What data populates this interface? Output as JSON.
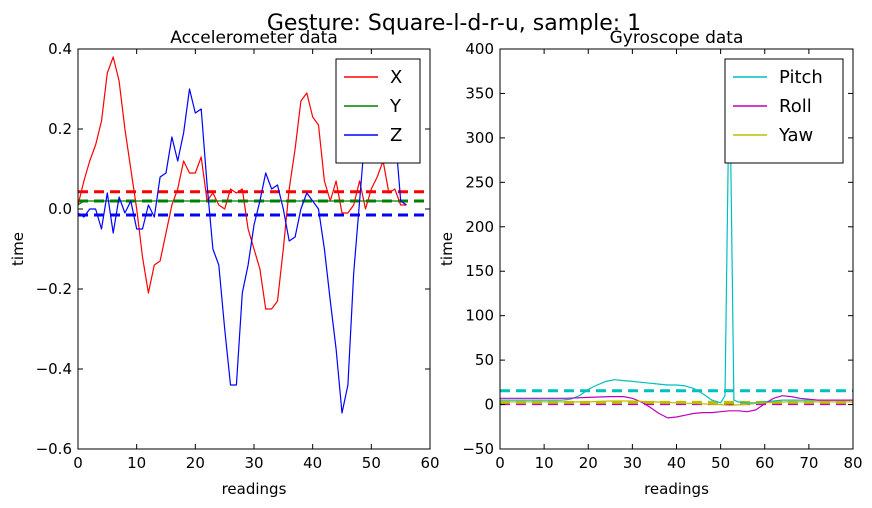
{
  "figure": {
    "title": "Gesture: Square-l-d-r-u, sample: 1"
  },
  "chart_data": [
    {
      "type": "line",
      "title": "Accelerometer data",
      "xlabel": "readings",
      "ylabel": "time",
      "xlim": [
        0,
        60
      ],
      "ylim": [
        -0.6,
        0.4
      ],
      "xticks": [
        0,
        10,
        20,
        30,
        40,
        50,
        60
      ],
      "yticks": [
        -0.6,
        -0.4,
        -0.2,
        0.0,
        0.2,
        0.4
      ],
      "xtick_labels": [
        "0",
        "10",
        "20",
        "30",
        "40",
        "50",
        "60"
      ],
      "ytick_labels": [
        "−0.6",
        "−0.4",
        "−0.2",
        "0.0",
        "0.2",
        "0.4"
      ],
      "grid": false,
      "legend_position": "top-right",
      "series": [
        {
          "name": "X",
          "color": "#ff0000",
          "x": [
            0,
            1,
            2,
            3,
            4,
            5,
            6,
            7,
            8,
            9,
            10,
            11,
            12,
            13,
            14,
            15,
            16,
            17,
            18,
            19,
            20,
            21,
            22,
            23,
            24,
            25,
            26,
            27,
            28,
            29,
            30,
            31,
            32,
            33,
            34,
            35,
            36,
            37,
            38,
            39,
            40,
            41,
            42,
            43,
            44,
            45,
            46,
            47,
            48,
            49,
            50,
            51,
            52,
            53,
            54,
            55,
            56
          ],
          "y": [
            0.01,
            0.07,
            0.12,
            0.16,
            0.22,
            0.34,
            0.38,
            0.32,
            0.2,
            0.1,
            0.0,
            -0.12,
            -0.21,
            -0.14,
            -0.13,
            -0.06,
            0.01,
            0.05,
            0.12,
            0.09,
            0.09,
            0.13,
            0.02,
            0.04,
            0.01,
            0.0,
            0.05,
            0.04,
            0.05,
            -0.05,
            -0.1,
            -0.15,
            -0.25,
            -0.25,
            -0.23,
            -0.1,
            0.05,
            0.15,
            0.27,
            0.29,
            0.23,
            0.21,
            0.07,
            0.02,
            0.07,
            -0.01,
            -0.01,
            0.01,
            0.07,
            0.0,
            0.05,
            0.08,
            0.12,
            0.04,
            0.05,
            0.01,
            0.01
          ]
        },
        {
          "name": "Y",
          "color": "#008000",
          "x": [
            0,
            1,
            2,
            3,
            4,
            5,
            6,
            7,
            8,
            9,
            10,
            11,
            12,
            13,
            14,
            15,
            16,
            17,
            18,
            19,
            20,
            21,
            22,
            23,
            24,
            25,
            26,
            27,
            28,
            29,
            30,
            31,
            32,
            33,
            34,
            35,
            36,
            37,
            38,
            39,
            40,
            41,
            42,
            43,
            44,
            45,
            46,
            47,
            48,
            49,
            50,
            51,
            52,
            53,
            54,
            55,
            56
          ],
          "y": [
            0.01,
            0.02,
            0.02,
            0.02,
            0.02,
            0.02,
            0.02,
            0.02,
            0.02,
            0.02,
            0.02,
            0.02,
            0.02,
            0.02,
            0.02,
            0.02,
            0.02,
            0.02,
            0.02,
            0.02,
            0.02,
            0.02,
            0.02,
            0.02,
            0.02,
            0.02,
            0.02,
            0.02,
            0.02,
            0.02,
            0.02,
            0.02,
            0.02,
            0.02,
            0.02,
            0.02,
            0.02,
            0.02,
            0.02,
            0.02,
            0.02,
            0.02,
            0.02,
            0.02,
            0.02,
            0.02,
            0.02,
            0.02,
            0.02,
            0.02,
            0.02,
            0.02,
            0.02,
            0.02,
            0.02,
            0.02,
            0.02
          ]
        },
        {
          "name": "Z",
          "color": "#0000ff",
          "x": [
            0,
            1,
            2,
            3,
            4,
            5,
            6,
            7,
            8,
            9,
            10,
            11,
            12,
            13,
            14,
            15,
            16,
            17,
            18,
            19,
            20,
            21,
            22,
            23,
            24,
            25,
            26,
            27,
            28,
            29,
            30,
            31,
            32,
            33,
            34,
            35,
            36,
            37,
            38,
            39,
            40,
            41,
            42,
            43,
            44,
            45,
            46,
            47,
            48,
            49,
            50,
            51,
            52,
            53,
            54,
            55,
            56
          ],
          "y": [
            -0.01,
            -0.02,
            0.0,
            0.0,
            -0.05,
            0.04,
            -0.06,
            0.03,
            -0.01,
            0.02,
            -0.05,
            -0.05,
            0.01,
            -0.02,
            0.08,
            0.09,
            0.18,
            0.12,
            0.19,
            0.3,
            0.24,
            0.25,
            0.06,
            -0.1,
            -0.14,
            -0.3,
            -0.44,
            -0.44,
            -0.21,
            -0.14,
            -0.04,
            0.02,
            0.09,
            0.05,
            0.06,
            0.0,
            -0.08,
            -0.07,
            0.0,
            0.04,
            0.02,
            0.0,
            -0.1,
            -0.23,
            -0.35,
            -0.51,
            -0.44,
            -0.16,
            0.02,
            0.2,
            0.25,
            0.2,
            0.21,
            0.19,
            0.2,
            0.02,
            0.01
          ]
        }
      ],
      "mean_lines": [
        {
          "series": "X",
          "value": 0.043,
          "color": "#ff0000"
        },
        {
          "series": "Y",
          "value": 0.02,
          "color": "#008000"
        },
        {
          "series": "Z",
          "value": -0.015,
          "color": "#0000ff"
        }
      ]
    },
    {
      "type": "line",
      "title": "Gyroscope data",
      "xlabel": "readings",
      "ylabel": "time",
      "xlim": [
        0,
        80
      ],
      "ylim": [
        -50,
        400
      ],
      "xticks": [
        0,
        10,
        20,
        30,
        40,
        50,
        60,
        70,
        80
      ],
      "yticks": [
        -50,
        0,
        50,
        100,
        150,
        200,
        250,
        300,
        350,
        400
      ],
      "xtick_labels": [
        "0",
        "10",
        "20",
        "30",
        "40",
        "50",
        "60",
        "70",
        "80"
      ],
      "ytick_labels": [
        "−50",
        "0",
        "50",
        "100",
        "150",
        "200",
        "250",
        "300",
        "350",
        "400"
      ],
      "grid": false,
      "legend_position": "top-right",
      "series": [
        {
          "name": "Pitch",
          "color": "#00bfbf",
          "x": [
            0,
            5,
            10,
            14,
            16,
            18,
            20,
            22,
            24,
            26,
            28,
            30,
            32,
            34,
            36,
            38,
            40,
            42,
            44,
            46,
            48,
            50,
            51,
            52,
            53,
            54,
            56,
            58,
            60,
            62,
            64,
            66,
            68,
            70,
            72,
            75,
            78,
            80
          ],
          "y": [
            5,
            5,
            5,
            5,
            6,
            10,
            17,
            22,
            26,
            28,
            27,
            26,
            25,
            24,
            23,
            22,
            22,
            21,
            18,
            12,
            5,
            2,
            10,
            385,
            5,
            3,
            2,
            2,
            3,
            4,
            5,
            5,
            5,
            5,
            5,
            5,
            5,
            5
          ]
        },
        {
          "name": "Roll",
          "color": "#bf00bf",
          "x": [
            0,
            5,
            10,
            15,
            20,
            25,
            28,
            30,
            32,
            34,
            36,
            38,
            40,
            42,
            44,
            46,
            48,
            50,
            52,
            54,
            56,
            58,
            60,
            62,
            64,
            66,
            68,
            70,
            72,
            75,
            80
          ],
          "y": [
            7,
            7,
            7,
            7,
            8,
            9,
            9,
            7,
            3,
            -3,
            -10,
            -15,
            -14,
            -12,
            -10,
            -9,
            -9,
            -8,
            -7,
            -7,
            -8,
            -6,
            1,
            7,
            10,
            9,
            7,
            6,
            5,
            5,
            5
          ]
        },
        {
          "name": "Yaw",
          "color": "#bfbf00",
          "x": [
            0,
            10,
            20,
            25,
            30,
            35,
            40,
            45,
            50,
            52,
            55,
            60,
            65,
            70,
            75,
            80
          ],
          "y": [
            3,
            3,
            3,
            4,
            4,
            3,
            2,
            1,
            0,
            -1,
            0,
            2,
            3,
            3,
            3,
            3
          ]
        }
      ],
      "mean_lines": [
        {
          "series": "Pitch",
          "value": 15.5,
          "color": "#00bfbf"
        },
        {
          "series": "Roll",
          "value": 1.0,
          "color": "#bf00bf"
        },
        {
          "series": "Yaw",
          "value": 2.5,
          "color": "#bfbf00"
        }
      ]
    }
  ]
}
